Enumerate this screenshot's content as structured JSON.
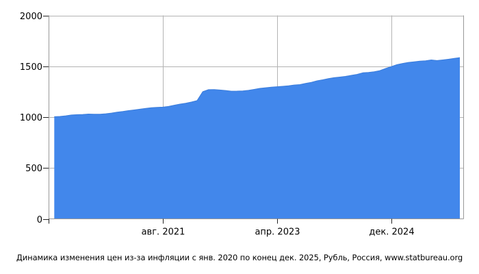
{
  "chart_data": {
    "type": "area",
    "title": "Динамика изменения цен из-за инфляции с янв. 2020 по конец дек. 2025, Рубль, Россия, www.statbureau.org",
    "currency": "Рубль",
    "country": "Россия",
    "source": "www.statbureau.org",
    "x_start": "янв. 2020",
    "x_end": "дек. 2025",
    "xlabel": "",
    "ylabel": "",
    "ylim": [
      0,
      2000
    ],
    "y_ticks": [
      0,
      500,
      1000,
      1500,
      2000
    ],
    "x_ticks": [
      {
        "label": "авг. 2021",
        "month_index": 19
      },
      {
        "label": "апр. 2023",
        "month_index": 39
      },
      {
        "label": "дек. 2024",
        "month_index": 59
      }
    ],
    "grid": true,
    "legend": "none",
    "months": [
      "2020-01",
      "2020-02",
      "2020-03",
      "2020-04",
      "2020-05",
      "2020-06",
      "2020-07",
      "2020-08",
      "2020-09",
      "2020-10",
      "2020-11",
      "2020-12",
      "2021-01",
      "2021-02",
      "2021-03",
      "2021-04",
      "2021-05",
      "2021-06",
      "2021-07",
      "2021-08",
      "2021-09",
      "2021-10",
      "2021-11",
      "2021-12",
      "2022-01",
      "2022-02",
      "2022-03",
      "2022-04",
      "2022-05",
      "2022-06",
      "2022-07",
      "2022-08",
      "2022-09",
      "2022-10",
      "2022-11",
      "2022-12",
      "2023-01",
      "2023-02",
      "2023-03",
      "2023-04",
      "2023-05",
      "2023-06",
      "2023-07",
      "2023-08",
      "2023-09",
      "2023-10",
      "2023-11",
      "2023-12",
      "2024-01",
      "2024-02",
      "2024-03",
      "2024-04",
      "2024-05",
      "2024-06",
      "2024-07",
      "2024-08",
      "2024-09",
      "2024-10",
      "2024-11",
      "2024-12",
      "2025-01",
      "2025-02",
      "2025-03",
      "2025-04",
      "2025-05",
      "2025-06",
      "2025-07",
      "2025-08",
      "2025-09",
      "2025-10",
      "2025-11",
      "2025-12"
    ],
    "values": [
      1004,
      1007,
      1013,
      1021,
      1024,
      1026,
      1030,
      1029,
      1029,
      1033,
      1040,
      1049,
      1056,
      1064,
      1071,
      1078,
      1086,
      1093,
      1096,
      1098,
      1105,
      1117,
      1128,
      1137,
      1148,
      1162,
      1250,
      1270,
      1271,
      1267,
      1262,
      1255,
      1256,
      1258,
      1263,
      1273,
      1283,
      1289,
      1294,
      1299,
      1303,
      1308,
      1316,
      1320,
      1331,
      1342,
      1357,
      1367,
      1379,
      1388,
      1394,
      1401,
      1411,
      1420,
      1436,
      1439,
      1446,
      1457,
      1478,
      1497,
      1516,
      1528,
      1538,
      1544,
      1551,
      1554,
      1562,
      1556,
      1562,
      1569,
      1577,
      1585
    ],
    "colors": {
      "fill": "#4287EB",
      "edge": "#3A7CDB",
      "grid": "#b3b3b3",
      "frame": "#999999",
      "tick": "#222222",
      "text": "#000000"
    }
  }
}
